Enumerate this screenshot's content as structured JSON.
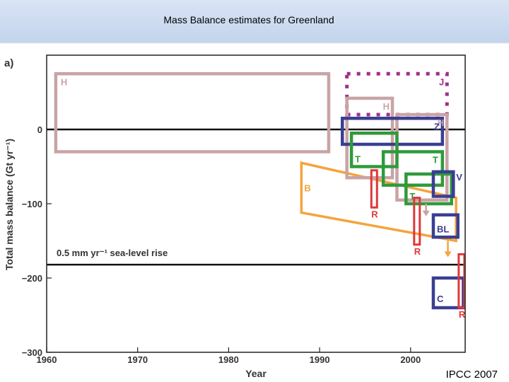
{
  "slide": {
    "title": "Mass Balance estimates for Greenland",
    "source": "IPCC 2007"
  },
  "chart_data": {
    "type": "box-estimates",
    "panel_label": "a)",
    "xlabel": "Year",
    "ylabel": "Total mass balance (Gt yr⁻¹)",
    "xlim": [
      1960,
      2006
    ],
    "ylim": [
      -300,
      100
    ],
    "xticks": [
      1960,
      1970,
      1980,
      1990,
      2000
    ],
    "yticks": [
      -300,
      -200,
      -100,
      0
    ],
    "reference_lines": [
      {
        "y": 0,
        "label": ""
      },
      {
        "y": -182,
        "label": "0.5 mm yr⁻¹ sea-level rise"
      }
    ],
    "boxes": [
      {
        "label": "H",
        "x": [
          1961,
          1991
        ],
        "y": [
          -30,
          75
        ],
        "color": "#c9a4a4",
        "style": "solid"
      },
      {
        "label": "J",
        "x": [
          1993,
          2004
        ],
        "y": [
          20,
          75
        ],
        "color": "#a0308a",
        "style": "dotted"
      },
      {
        "label": "H",
        "x": [
          1993,
          1998
        ],
        "y": [
          -65,
          42
        ],
        "color": "#c9a4a4",
        "style": "solid"
      },
      {
        "label": "H",
        "x": [
          1998.5,
          2004
        ],
        "y": [
          -95,
          20
        ],
        "color": "#c9a4a4",
        "style": "solid"
      },
      {
        "label": "Z",
        "x": [
          1992.5,
          2003.5
        ],
        "y": [
          -20,
          15
        ],
        "color": "#3a3e92",
        "style": "solid"
      },
      {
        "label": "T",
        "x": [
          1993.5,
          1998.5
        ],
        "y": [
          -50,
          -5
        ],
        "color": "#2f9a3c",
        "style": "solid"
      },
      {
        "label": "T",
        "x": [
          1997,
          2003.5
        ],
        "y": [
          -75,
          -30
        ],
        "color": "#2f9a3c",
        "style": "solid"
      },
      {
        "label": "T",
        "x": [
          1999.5,
          2004.5
        ],
        "y": [
          -100,
          -60
        ],
        "color": "#2f9a3c",
        "style": "solid"
      },
      {
        "label": "V",
        "x": [
          2002.5,
          2004.7
        ],
        "y": [
          -90,
          -57
        ],
        "color": "#3a3e92",
        "style": "solid"
      },
      {
        "label": "BL",
        "x": [
          2002.5,
          2005.2
        ],
        "y": [
          -145,
          -115
        ],
        "color": "#3a3e92",
        "style": "solid"
      },
      {
        "label": "C",
        "x": [
          2002.5,
          2005.8
        ],
        "y": [
          -240,
          -200
        ],
        "color": "#3a3e92",
        "style": "solid"
      }
    ],
    "bars": [
      {
        "label": "R",
        "x": 1996,
        "y": [
          -105,
          -55
        ],
        "color": "#e0383a"
      },
      {
        "label": "R",
        "x": 2000.7,
        "y": [
          -155,
          -92
        ],
        "color": "#e0383a"
      },
      {
        "label": "R",
        "x": 2005.6,
        "y": [
          -240,
          -168
        ],
        "color": "#e0383a"
      }
    ],
    "trend_band": {
      "label": "B",
      "color": "#f4a43c",
      "x": [
        1988,
        2005
      ],
      "upper": [
        -45,
        -92
      ],
      "lower": [
        -112,
        -150
      ]
    },
    "small_arrows": [
      {
        "x": 2001.7,
        "y": [
          -100,
          -115
        ],
        "color": "#c9a4a4"
      },
      {
        "x": 2004.1,
        "y": [
          -150,
          -170
        ],
        "color": "#f4a43c"
      }
    ]
  }
}
